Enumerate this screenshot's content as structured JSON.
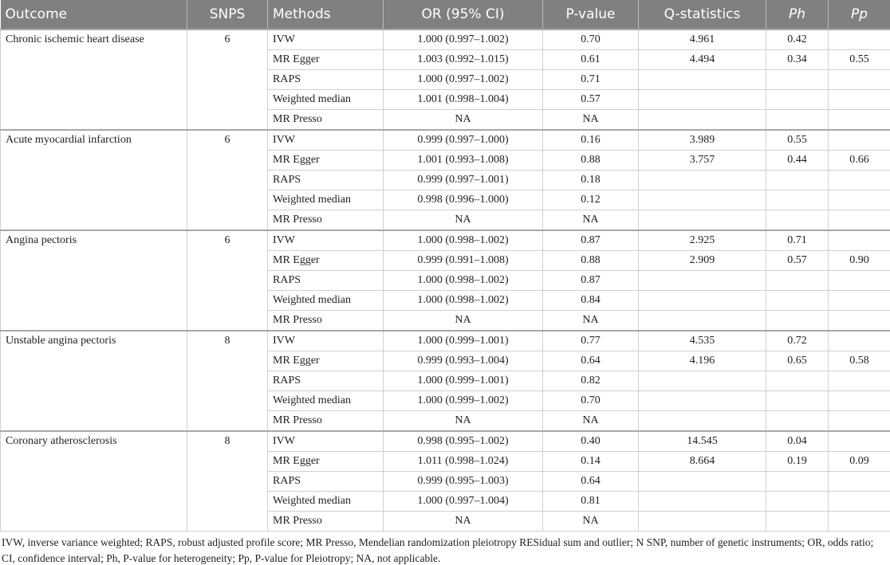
{
  "table": {
    "header": [
      "Outcome",
      "SNPS",
      "Methods",
      "OR (95% CI)",
      "P-value",
      "Q-statistics",
      "Ph",
      "Pp"
    ],
    "groups": [
      {
        "outcome": "Chronic ischemic heart disease",
        "snps": 6,
        "rows": [
          [
            "IVW",
            "1.000 (0.997–1.002)",
            "0.70",
            "4.961",
            "0.42",
            null
          ],
          [
            "MR Egger",
            "1.003 (0.992–1.015)",
            "0.61",
            "4.494",
            "0.34",
            "0.55"
          ],
          [
            "RAPS",
            "1.000 (0.997–1.002)",
            "0.71",
            null,
            null,
            null
          ],
          [
            "Weighted median",
            "1.001 (0.998–1.004)",
            "0.57",
            null,
            null,
            null
          ],
          [
            "MR Presso",
            "NA",
            "NA",
            null,
            null,
            null
          ]
        ]
      },
      {
        "outcome": "Acute myocardial infarction",
        "snps": 6,
        "rows": [
          [
            "IVW",
            "0.999 (0.997–1.000)",
            "0.16",
            "3.989",
            "0.55",
            null
          ],
          [
            "MR Egger",
            "1.001 (0.993–1.008)",
            "0.88",
            "3.757",
            "0.44",
            "0.66"
          ],
          [
            "RAPS",
            "0.999 (0.997–1.001)",
            "0.18",
            null,
            null,
            null
          ],
          [
            "Weighted median",
            "0.998 (0.996–1.000)",
            "0.12",
            null,
            null,
            null
          ],
          [
            "MR Presso",
            "NA",
            "NA",
            null,
            null,
            null
          ]
        ]
      },
      {
        "outcome": "Angina pectoris",
        "snps": 6,
        "rows": [
          [
            "IVW",
            "1.000 (0.998–1.002)",
            "0.87",
            "2.925",
            "0.71",
            null
          ],
          [
            "MR Egger",
            "0.999 (0.991–1.008)",
            "0.88",
            "2.909",
            "0.57",
            "0.90"
          ],
          [
            "RAPS",
            "1.000 (0.998–1.002)",
            "0.87",
            null,
            null,
            null
          ],
          [
            "Weighted median",
            "1.000 (0.998–1.002)",
            "0.84",
            null,
            null,
            null
          ],
          [
            "MR Presso",
            "NA",
            "NA",
            null,
            null,
            null
          ]
        ]
      },
      {
        "outcome": "Unstable angina pectoris",
        "snps": 8,
        "rows": [
          [
            "IVW",
            "1.000 (0.999–1.001)",
            "0.77",
            "4.535",
            "0.72",
            null
          ],
          [
            "MR Egger",
            "0.999 (0.993–1.004)",
            "0.64",
            "4.196",
            "0.65",
            "0.58"
          ],
          [
            "RAPS",
            "1.000 (0.999–1.001)",
            "0.82",
            null,
            null,
            null
          ],
          [
            "Weighted median",
            "1.000 (0.999–1.002)",
            "0.70",
            null,
            null,
            null
          ],
          [
            "MR Presso",
            "NA",
            "NA",
            null,
            null,
            null
          ]
        ]
      },
      {
        "outcome": "Coronary atherosclerosis",
        "snps": 8,
        "rows": [
          [
            "IVW",
            "0.998 (0.995–1.002)",
            "0.40",
            "14.545",
            "0.04",
            null
          ],
          [
            "MR Egger",
            "1.011 (0.998–1.024)",
            "0.14",
            "8.664",
            "0.19",
            "0.09"
          ],
          [
            "RAPS",
            "0.999 (0.995–1.003)",
            "0.64",
            null,
            null,
            null
          ],
          [
            "Weighted median",
            "1.000 (0.997–1.004)",
            "0.81",
            null,
            null,
            null
          ],
          [
            "MR Presso",
            "NA",
            "NA",
            null,
            null,
            null
          ]
        ]
      }
    ]
  },
  "footnote": "IVW, inverse variance weighted; RAPS, robust adjusted profile score; MR Presso, Mendelian randomization pleiotropy RESidual sum and outlier; N SNP, number of genetic instruments; OR, odds ratio; CI, confidence interval; Ph, P-value for heterogeneity; Pp, P-value for Pleiotropy; NA, not applicable."
}
